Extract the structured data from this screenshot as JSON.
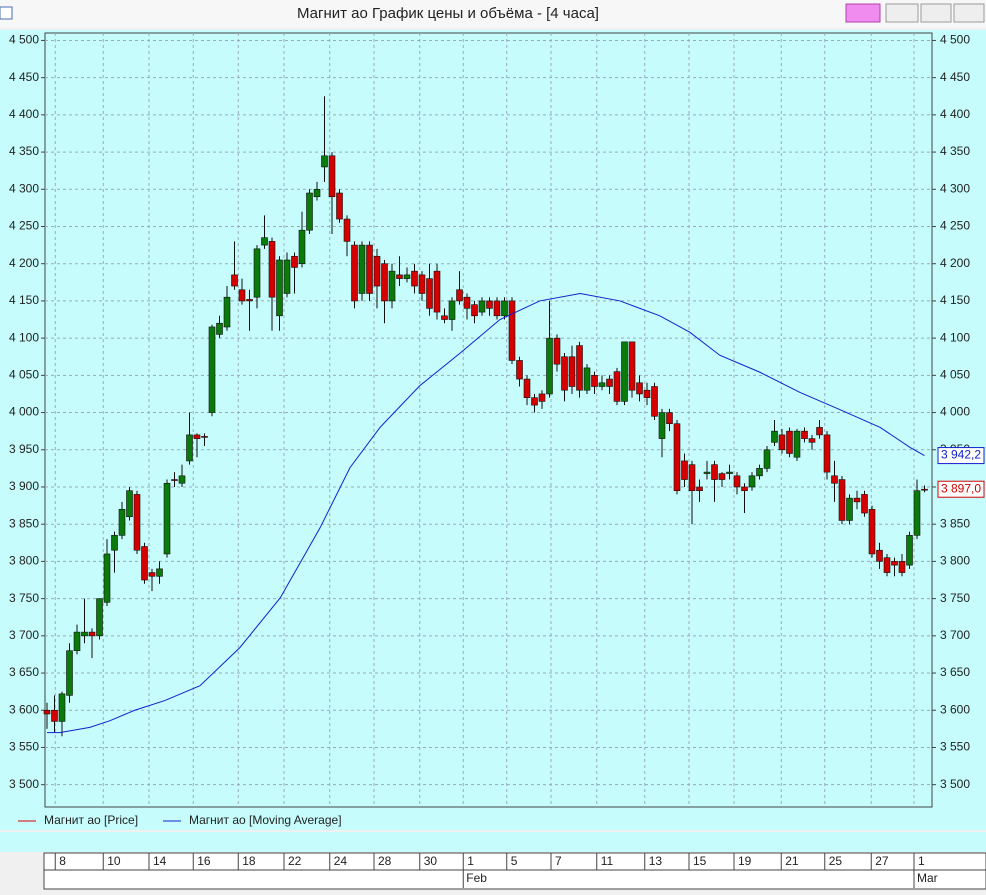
{
  "chart_data": {
    "type": "candlestick",
    "title": "Магнит ао График цены и объёма - [4 часа]",
    "series": [
      {
        "name": "Магнит ао [Price]",
        "color": "#d40000",
        "up_color": "#0a7a0a",
        "open": [
          3600,
          3600,
          3585,
          3620,
          3680,
          3700,
          3705,
          3700,
          3745,
          3815,
          3835,
          3860,
          3890,
          3820,
          3785,
          3780,
          3810,
          3910,
          3905,
          3935,
          3970,
          3968,
          4000,
          4105,
          4115,
          4185,
          4165,
          4152,
          4155,
          4225,
          4230,
          4130,
          4160,
          4210,
          4200,
          4245,
          4290,
          4330,
          4345,
          4295,
          4260,
          4225,
          4160,
          4225,
          4210,
          4200,
          4150,
          4185,
          4180,
          4190,
          4185,
          4180,
          4190,
          4130,
          4125,
          4165,
          4155,
          4145,
          4135,
          4150,
          4150,
          4130,
          4150,
          4070,
          4045,
          4020,
          4025,
          4025,
          4100,
          4075,
          4075,
          4090,
          4030,
          4050,
          4035,
          4045,
          4055,
          4015,
          4095,
          4040,
          4030,
          4035,
          3965,
          4000,
          3985,
          3935,
          3930,
          3900,
          3918,
          3930,
          3918,
          3918,
          3915,
          3900,
          3900,
          3915,
          3925,
          3960,
          3970,
          3975,
          3940,
          3975,
          3965,
          3980,
          3970,
          3915,
          3910,
          3855,
          3885,
          3890,
          3870,
          3815,
          3805,
          3800,
          3800,
          3795,
          3835,
          3897
        ],
        "high": [
          3610,
          3620,
          3625,
          3690,
          3715,
          3750,
          3710,
          3750,
          3830,
          3840,
          3880,
          3900,
          3895,
          3825,
          3790,
          3800,
          3910,
          3920,
          3930,
          4000,
          3972,
          3972,
          4118,
          4130,
          4170,
          4230,
          4180,
          4165,
          4225,
          4265,
          4235,
          4210,
          4215,
          4215,
          4270,
          4300,
          4310,
          4425,
          4350,
          4300,
          4265,
          4230,
          4230,
          4230,
          4220,
          4205,
          4200,
          4210,
          4195,
          4200,
          4190,
          4200,
          4200,
          4140,
          4155,
          4190,
          4160,
          4150,
          4155,
          4155,
          4155,
          4155,
          4155,
          4075,
          4050,
          4025,
          4030,
          4150,
          4105,
          4080,
          4090,
          4095,
          4065,
          4055,
          4050,
          4050,
          4060,
          4095,
          4095,
          4050,
          4040,
          4040,
          4005,
          4005,
          3990,
          3945,
          3935,
          3910,
          3935,
          3935,
          3920,
          3930,
          3920,
          3905,
          3920,
          3930,
          3955,
          3990,
          3978,
          3980,
          3978,
          3980,
          3970,
          3990,
          3975,
          3935,
          3915,
          3890,
          3895,
          3895,
          3875,
          3825,
          3810,
          3805,
          3810,
          3840,
          3910,
          3902
        ],
        "low": [
          3575,
          3570,
          3565,
          3610,
          3675,
          3690,
          3670,
          3695,
          3740,
          3785,
          3830,
          3855,
          3810,
          3770,
          3760,
          3770,
          3805,
          3900,
          3900,
          3930,
          3940,
          3955,
          3995,
          4100,
          4110,
          4165,
          4145,
          4110,
          4140,
          4220,
          4110,
          4110,
          4155,
          4160,
          4195,
          4240,
          4285,
          4310,
          4240,
          4255,
          4210,
          4140,
          4150,
          4150,
          4140,
          4120,
          4140,
          4170,
          4175,
          4160,
          4150,
          4130,
          4125,
          4120,
          4110,
          4145,
          4125,
          4120,
          4130,
          4130,
          4125,
          4125,
          4065,
          4035,
          4010,
          4000,
          4005,
          4020,
          4055,
          4015,
          4025,
          4020,
          4025,
          4025,
          4030,
          4025,
          4010,
          4010,
          4020,
          4015,
          4010,
          3990,
          3940,
          3975,
          3890,
          3900,
          3850,
          3880,
          3910,
          3880,
          3900,
          3910,
          3890,
          3865,
          3895,
          3910,
          3920,
          3955,
          3945,
          3940,
          3935,
          3960,
          3950,
          3965,
          3910,
          3880,
          3850,
          3850,
          3870,
          3860,
          3805,
          3790,
          3780,
          3780,
          3780,
          3790,
          3830,
          3893
        ],
        "close": [
          3595,
          3585,
          3622,
          3680,
          3705,
          3705,
          3700,
          3750,
          3810,
          3835,
          3870,
          3895,
          3815,
          3775,
          3780,
          3790,
          3905,
          3910,
          3915,
          3970,
          3965,
          3967,
          4115,
          4120,
          4155,
          4170,
          4150,
          4150,
          4220,
          4235,
          4155,
          4205,
          4205,
          4195,
          4245,
          4295,
          4300,
          4345,
          4290,
          4260,
          4230,
          4150,
          4225,
          4160,
          4170,
          4150,
          4190,
          4180,
          4185,
          4170,
          4160,
          4140,
          4135,
          4125,
          4150,
          4150,
          4140,
          4130,
          4150,
          4140,
          4130,
          4150,
          4070,
          4045,
          4020,
          4010,
          4015,
          4100,
          4065,
          4030,
          4035,
          4030,
          4060,
          4035,
          4040,
          4035,
          4015,
          4095,
          4030,
          4025,
          4020,
          3995,
          4000,
          3985,
          3895,
          3910,
          3895,
          3895,
          3920,
          3910,
          3910,
          3920,
          3900,
          3895,
          3915,
          3925,
          3950,
          3975,
          3950,
          3945,
          3975,
          3965,
          3960,
          3970,
          3920,
          3905,
          3855,
          3885,
          3880,
          3865,
          3810,
          3800,
          3785,
          3795,
          3785,
          3835,
          3895,
          3897
        ],
        "last": {
          "value": 3897.0,
          "label": "3 897,0"
        }
      },
      {
        "name": "Магнит ао [Moving Average]",
        "color": "#1020d0",
        "x": [
          0,
          1.7,
          5.7,
          8.4,
          11.7,
          15.7,
          20.4,
          25.7,
          31.1,
          36.4,
          40.4,
          44.4,
          49.7,
          55.1,
          60.4,
          65.7,
          71.1,
          76.4,
          81.7,
          85.7,
          89.7,
          95.1,
          100.4,
          105.7,
          111.1,
          115.1,
          117
        ],
        "values": [
          3570,
          3570,
          3577,
          3586,
          3600,
          3613,
          3633,
          3684,
          3751,
          3845,
          3926,
          3980,
          4036,
          4080,
          4125,
          4150,
          4160,
          4150,
          4130,
          4108,
          4077,
          4054,
          4027,
          4004,
          3980,
          3953,
          3942.2
        ],
        "last": {
          "value": 3942.2,
          "label": "3 942,2"
        }
      }
    ],
    "ylim": [
      3470,
      4510
    ],
    "yticks": [
      {
        "value": 3500,
        "label": "3 500"
      },
      {
        "value": 3550,
        "label": "3 550"
      },
      {
        "value": 3600,
        "label": "3 600"
      },
      {
        "value": 3650,
        "label": "3 650"
      },
      {
        "value": 3700,
        "label": "3 700"
      },
      {
        "value": 3750,
        "label": "3 750"
      },
      {
        "value": 3800,
        "label": "3 800"
      },
      {
        "value": 3850,
        "label": "3 850"
      },
      {
        "value": 3900,
        "label": "3 900"
      },
      {
        "value": 3950,
        "label": "3 950"
      },
      {
        "value": 4000,
        "label": "4 000"
      },
      {
        "value": 4050,
        "label": "4 050"
      },
      {
        "value": 4100,
        "label": "4 100"
      },
      {
        "value": 4150,
        "label": "4 150"
      },
      {
        "value": 4200,
        "label": "4 200"
      },
      {
        "value": 4250,
        "label": "4 250"
      },
      {
        "value": 4300,
        "label": "4 300"
      },
      {
        "value": 4350,
        "label": "4 350"
      },
      {
        "value": 4400,
        "label": "4 400"
      },
      {
        "value": 4450,
        "label": "4 450"
      },
      {
        "value": 4500,
        "label": "4 500"
      }
    ],
    "xticks": [
      {
        "value": 1.1,
        "label": "8"
      },
      {
        "value": 7.5,
        "label": "10"
      },
      {
        "value": 13.6,
        "label": "14"
      },
      {
        "value": 19.5,
        "label": "16"
      },
      {
        "value": 25.5,
        "label": "18"
      },
      {
        "value": 31.6,
        "label": "22"
      },
      {
        "value": 37.7,
        "label": "24"
      },
      {
        "value": 43.6,
        "label": "28"
      },
      {
        "value": 49.7,
        "label": "30"
      },
      {
        "value": 55.5,
        "label": "1"
      },
      {
        "value": 61.3,
        "label": "5"
      },
      {
        "value": 67.2,
        "label": "7"
      },
      {
        "value": 73.3,
        "label": "11"
      },
      {
        "value": 79.7,
        "label": "13"
      },
      {
        "value": 85.6,
        "label": "15"
      },
      {
        "value": 91.6,
        "label": "19"
      },
      {
        "value": 97.9,
        "label": "21"
      },
      {
        "value": 103.7,
        "label": "25"
      },
      {
        "value": 109.9,
        "label": "27"
      },
      {
        "value": 115.6,
        "label": "1"
      }
    ],
    "months": [
      {
        "value": 55.5,
        "label": "Feb"
      },
      {
        "value": 115.6,
        "label": "Mar"
      }
    ],
    "grid": true
  }
}
